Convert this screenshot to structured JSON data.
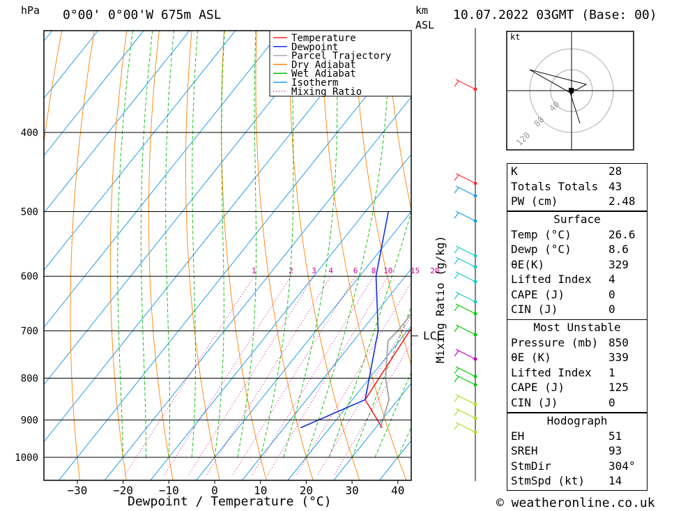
{
  "header": {
    "pressure_unit": "hPa",
    "location": "0°00' 0°00'W  675m  ASL",
    "km_label": "km",
    "asl_label": "ASL",
    "datetime": "10.07.2022  03GMT  (Base: 00)"
  },
  "legend": [
    "Temperature",
    "Dewpoint",
    "Parcel Trajectory",
    "Dry Adiabat",
    "Wet Adiabat",
    "Isotherm",
    "Mixing Ratio"
  ],
  "colors": {
    "temperature": "#ff2020",
    "dewpoint": "#1030e0",
    "parcel": "#a8a8a8",
    "dry_adiabat": "#ff8000",
    "wet_adiabat": "#00bb00",
    "isotherm": "#1e9be8",
    "mixing_ratio": "#d0009a"
  },
  "mixing_ratio_label": "Mixing Ratio (g/kg)",
  "lcl_label": "LCL",
  "credit": "© weatheronline.co.uk",
  "chart_data": {
    "type": "skew-t",
    "xlabel": "Dewpoint / Temperature (°C)",
    "x_ticks": [
      -30,
      -20,
      -10,
      0,
      10,
      20,
      30,
      40
    ],
    "x_tick_labels": [
      "−30",
      "−20",
      "−10",
      "0",
      "10",
      "20",
      "30",
      "40"
    ],
    "pressure_ticks": [
      400,
      500,
      600,
      700,
      800,
      900,
      1000
    ],
    "pressure_range_hpa": [
      300,
      1090
    ],
    "temperature_range_c": [
      -38,
      42
    ],
    "mixing_ratio_labels": [
      "1",
      "2",
      "3",
      "4",
      "6",
      "8",
      "10",
      "15",
      "20",
      "25"
    ],
    "temperature_profile": [
      {
        "p": 920,
        "t": 31.4
      },
      {
        "p": 850,
        "t": 22.8
      },
      {
        "p": 700,
        "t": 20.5
      },
      {
        "p": 600,
        "t": 19.0
      },
      {
        "p": 500,
        "t": 18.6
      }
    ],
    "dewpoint_profile": [
      {
        "p": 920,
        "t": 13.6
      },
      {
        "p": 850,
        "t": 22.8
      },
      {
        "p": 700,
        "t": 13.6
      },
      {
        "p": 600,
        "t": 3.6
      },
      {
        "p": 500,
        "t": -5.0
      }
    ],
    "parcel_trajectory": [
      {
        "p": 920,
        "t": 31.0
      },
      {
        "p": 850,
        "t": 28.0
      },
      {
        "p": 800,
        "t": 23.5
      },
      {
        "p": 720,
        "t": 17.5
      },
      {
        "p": 700,
        "t": 17.9
      },
      {
        "p": 600,
        "t": 17.8
      },
      {
        "p": 500,
        "t": 17.7
      },
      {
        "p": 400,
        "t": 18.8
      },
      {
        "p": 300,
        "t": 21.3
      }
    ],
    "lcl_pressure_hpa": 710
  },
  "hodograph": {
    "unit_label": "kt",
    "ring_labels": [
      "40",
      "80",
      "120"
    ]
  },
  "indices": {
    "k": {
      "label": "K",
      "value": "28"
    },
    "tt": {
      "label": "Totals Totals",
      "value": "43"
    },
    "pw": {
      "label": "PW (cm)",
      "value": "2.48"
    }
  },
  "surface": {
    "title": "Surface",
    "rows": [
      {
        "label": "Temp (°C)",
        "value": "26.6"
      },
      {
        "label": "Dewp (°C)",
        "value": "8.6"
      },
      {
        "label": "θE(K)",
        "value": "329"
      },
      {
        "label": "Lifted Index",
        "value": "4"
      },
      {
        "label": "CAPE (J)",
        "value": "0"
      },
      {
        "label": "CIN (J)",
        "value": "0"
      }
    ]
  },
  "most_unstable": {
    "title": "Most Unstable",
    "rows": [
      {
        "label": "Pressure (mb)",
        "value": "850"
      },
      {
        "label": "θE (K)",
        "value": "339"
      },
      {
        "label": "Lifted Index",
        "value": "1"
      },
      {
        "label": "CAPE (J)",
        "value": "125"
      },
      {
        "label": "CIN (J)",
        "value": "0"
      }
    ]
  },
  "hodograph_params": {
    "title": "Hodograph",
    "rows": [
      {
        "label": "EH",
        "value": "51"
      },
      {
        "label": "SREH",
        "value": "93"
      },
      {
        "label": "StmDir",
        "value": "304°"
      },
      {
        "label": "StmSpd (kt)",
        "value": "14"
      }
    ]
  }
}
